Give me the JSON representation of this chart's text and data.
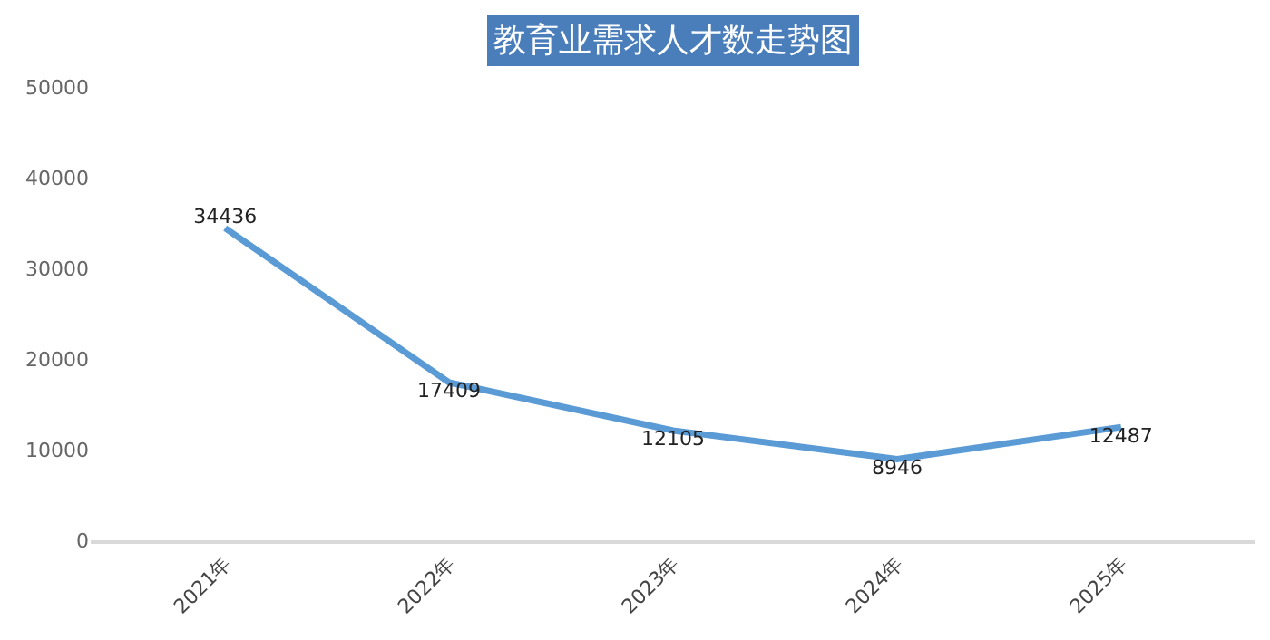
{
  "chart_data": {
    "type": "line",
    "title": "教育业需求人才数走势图",
    "categories": [
      "2021年",
      "2022年",
      "2023年",
      "2024年",
      "2025年"
    ],
    "series": [
      {
        "color": "#5b9bd5",
        "values": [
          34436,
          17409,
          12105,
          8946,
          12487
        ]
      }
    ],
    "ylim": [
      0,
      50000
    ],
    "yticks": [
      0,
      10000,
      20000,
      30000,
      40000,
      50000
    ],
    "data_labels": true,
    "marker": "none",
    "line_style": "solid"
  }
}
